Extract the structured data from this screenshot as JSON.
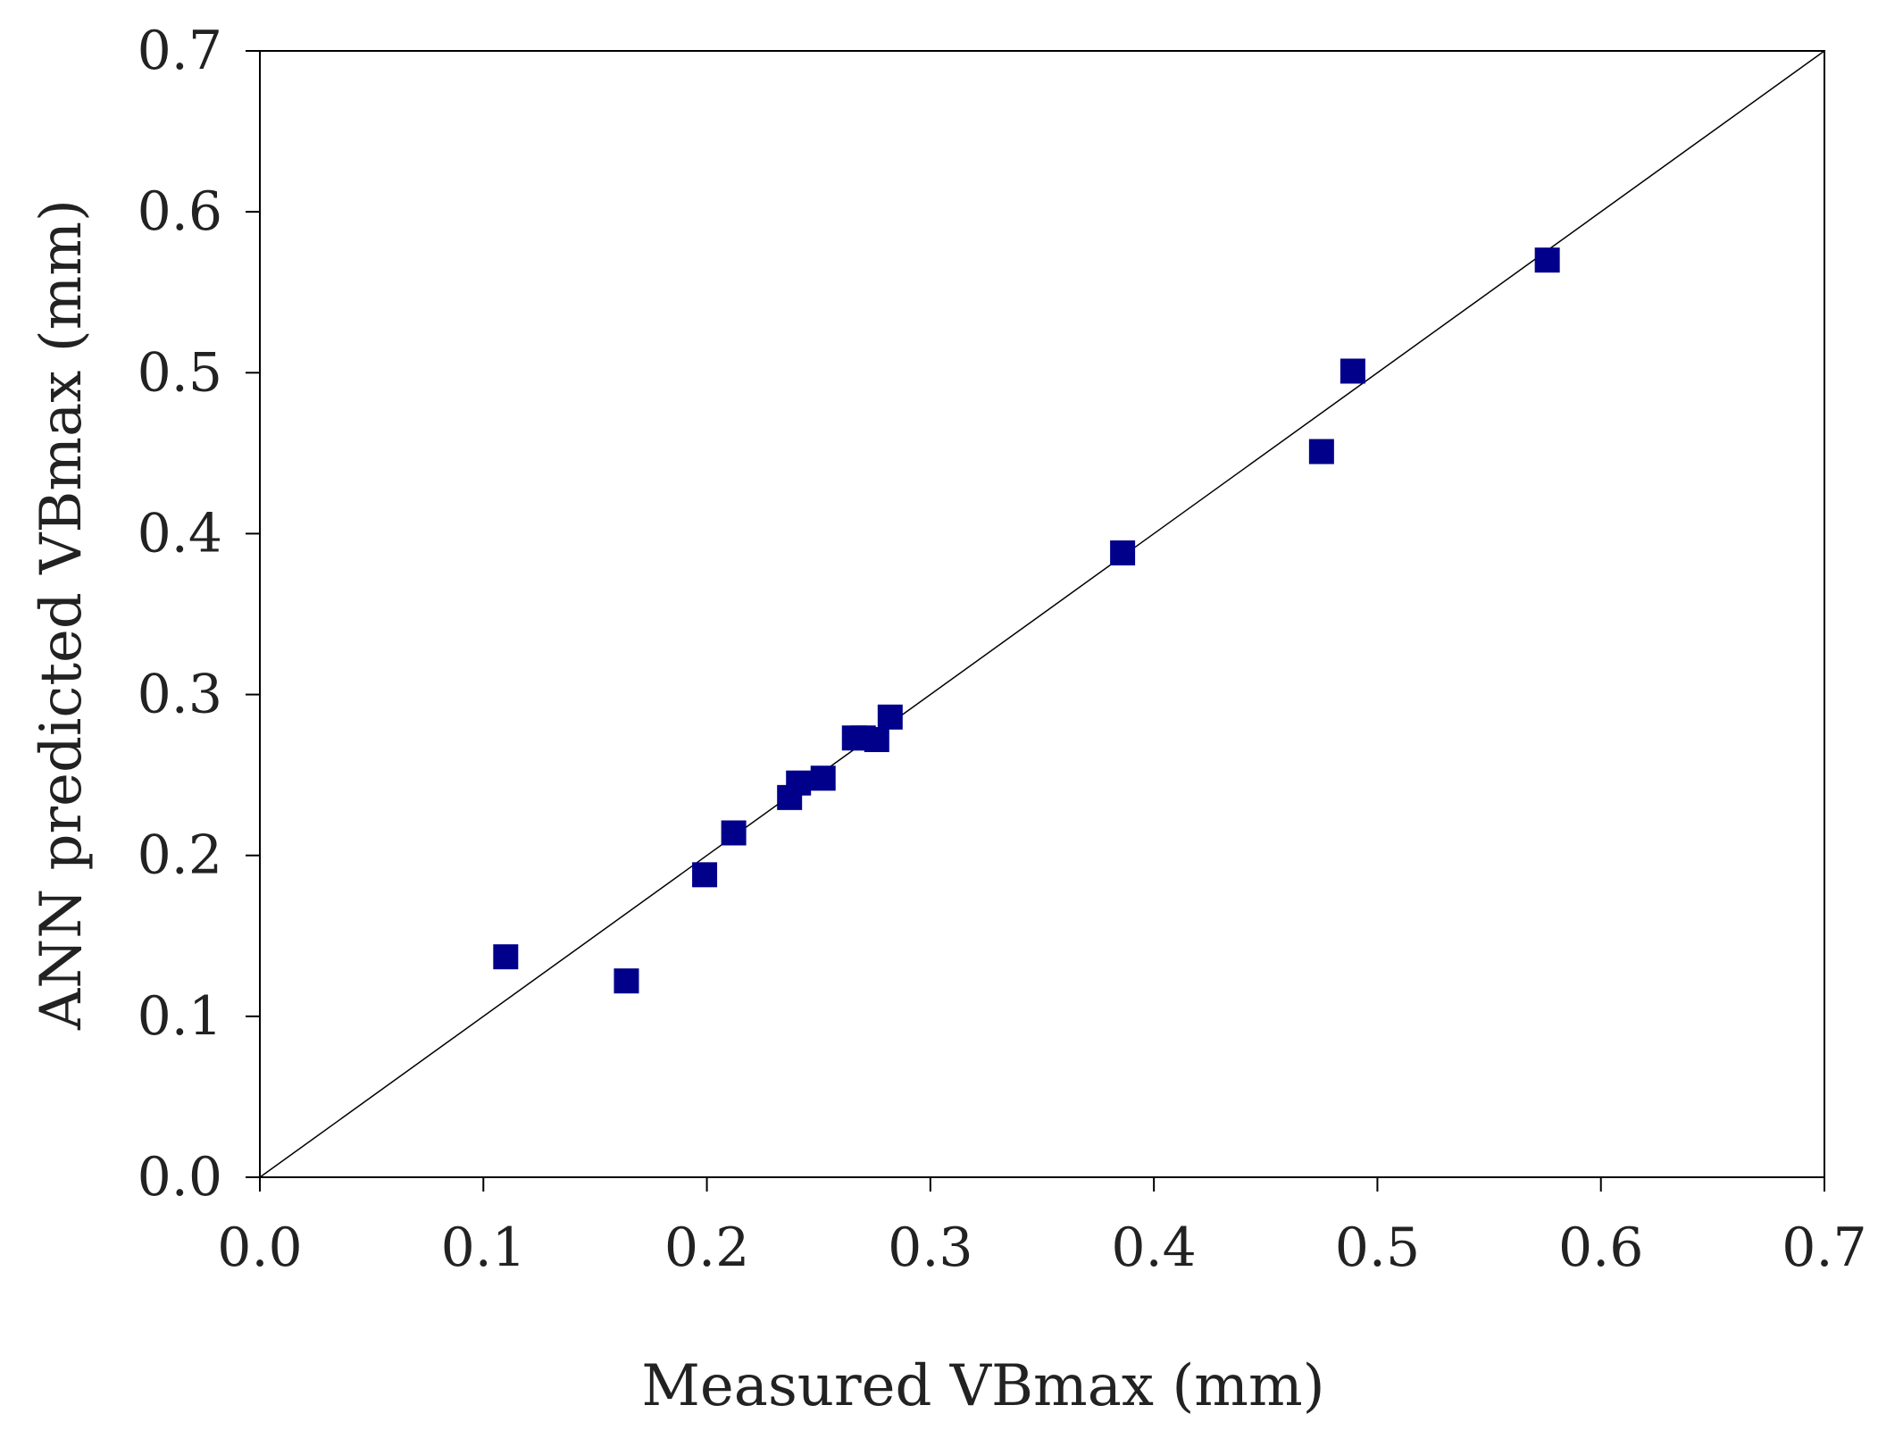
{
  "chart_data": {
    "type": "scatter",
    "title": "",
    "xlabel": "Measured VBmax (mm)",
    "ylabel": "ANN predicted VBmax (mm)",
    "xlim": [
      0,
      0.7
    ],
    "ylim": [
      0,
      0.7
    ],
    "xticks": [
      "0.0",
      "0.1",
      "0.2",
      "0.3",
      "0.4",
      "0.5",
      "0.6",
      "0.7"
    ],
    "yticks": [
      "0.0",
      "0.1",
      "0.2",
      "0.3",
      "0.4",
      "0.5",
      "0.6",
      "0.7"
    ],
    "grid": false,
    "reference_line": {
      "name": "y = x",
      "x": [
        0,
        0.7
      ],
      "y": [
        0,
        0.7
      ]
    },
    "series": [
      {
        "name": "ANN prediction",
        "marker": "square",
        "color": "#00008b",
        "points": [
          {
            "x": 0.11,
            "y": 0.137
          },
          {
            "x": 0.164,
            "y": 0.122
          },
          {
            "x": 0.199,
            "y": 0.188
          },
          {
            "x": 0.212,
            "y": 0.214
          },
          {
            "x": 0.237,
            "y": 0.236
          },
          {
            "x": 0.241,
            "y": 0.245
          },
          {
            "x": 0.252,
            "y": 0.248
          },
          {
            "x": 0.266,
            "y": 0.273
          },
          {
            "x": 0.27,
            "y": 0.273
          },
          {
            "x": 0.276,
            "y": 0.272
          },
          {
            "x": 0.282,
            "y": 0.286
          },
          {
            "x": 0.386,
            "y": 0.388
          },
          {
            "x": 0.475,
            "y": 0.451
          },
          {
            "x": 0.489,
            "y": 0.501
          },
          {
            "x": 0.576,
            "y": 0.57
          }
        ]
      }
    ]
  }
}
